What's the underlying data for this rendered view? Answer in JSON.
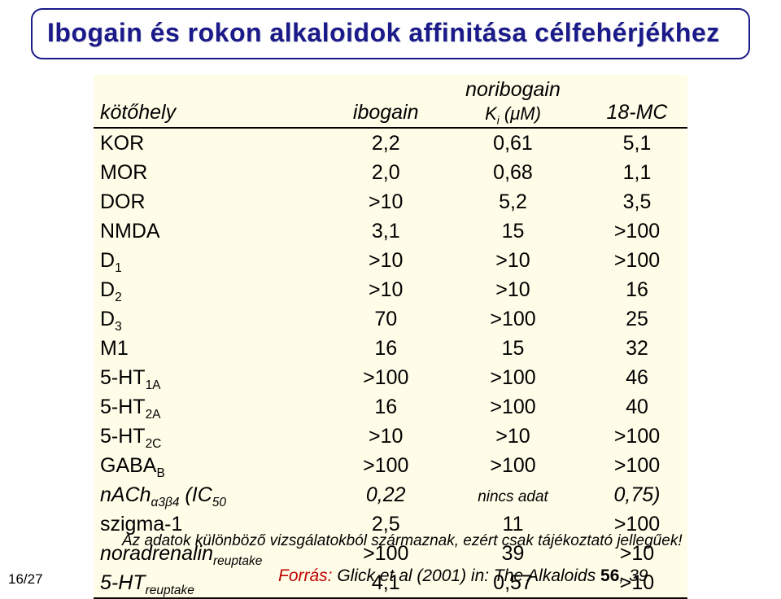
{
  "title": "Ibogain és rokon alkaloidok affinitása célfehérjékhez",
  "table": {
    "background": "#fffde8",
    "header": {
      "col0": "kötőhely",
      "col1": "ibogain",
      "col2_top": "noribogain",
      "col2_sub_prefix": "K",
      "col2_sub_i": "i",
      "col2_sub_suffix": " (μM)",
      "col3": "18-MC"
    },
    "rows": [
      {
        "label_html": "KOR",
        "c1": "2,2",
        "c2": "0,61",
        "c3": "5,1"
      },
      {
        "label_html": "MOR",
        "c1": "2,0",
        "c2": "0,68",
        "c3": "1,1"
      },
      {
        "label_html": "DOR",
        "c1": ">10",
        "c2": "5,2",
        "c3": "3,5"
      },
      {
        "label_html": "NMDA",
        "c1": "3,1",
        "c2": "15",
        "c3": ">100"
      },
      {
        "label_html": "D<span class='sub'>1</span>",
        "c1": ">10",
        "c2": ">10",
        "c3": ">100"
      },
      {
        "label_html": "D<span class='sub'>2</span>",
        "c1": ">10",
        "c2": ">10",
        "c3": "16"
      },
      {
        "label_html": "D<span class='sub'>3</span>",
        "c1": "70",
        "c2": ">100",
        "c3": "25"
      },
      {
        "label_html": "M1",
        "c1": "16",
        "c2": "15",
        "c3": "32"
      },
      {
        "label_html": "5-HT<span class='sub'>1A</span>",
        "c1": ">100",
        "c2": ">100",
        "c3": "46"
      },
      {
        "label_html": "5-HT<span class='sub'>2A</span>",
        "c1": "16",
        "c2": ">100",
        "c3": "40"
      },
      {
        "label_html": "5-HT<span class='sub'>2C</span>",
        "c1": ">10",
        "c2": ">10",
        "c3": ">100"
      },
      {
        "label_html": "GABA<span class='sub'>B</span>",
        "c1": ">100",
        "c2": ">100",
        "c3": ">100"
      },
      {
        "label_html": "<span class='ital'>nACh<span class='sub'>α3β4</span> (IC<span class='sub'>50</span></span>",
        "c1": "<span class='ital'>0,22</span>",
        "c2": "<span class='ital nincs'>nincs adat</span>",
        "c3": "<span class='ital'>0,75)</span>"
      },
      {
        "label_html": "szigma-1",
        "c1": "2,5",
        "c2": "11",
        "c3": ">100"
      },
      {
        "label_html": "<span class='ital'>noradrenalin<span class='sub'>reuptake</span></span>",
        "c1": ">100",
        "c2": "39",
        "c3": ">10"
      },
      {
        "label_html": "<span class='ital'>5-HT<span class='sub'>reuptake</span></span>",
        "c1": "4,1",
        "c2": "0,57",
        "c3": ">10"
      }
    ]
  },
  "footnote": "Az adatok különböző vizsgálatokból származnak, ezért csak tájékoztató jellegűek!",
  "source": {
    "label": "Forrás:",
    "text": " Glick et al (2001) in: The Alkaloids ",
    "vol": "56",
    "page": ", 39"
  },
  "pagenum": "16/27"
}
